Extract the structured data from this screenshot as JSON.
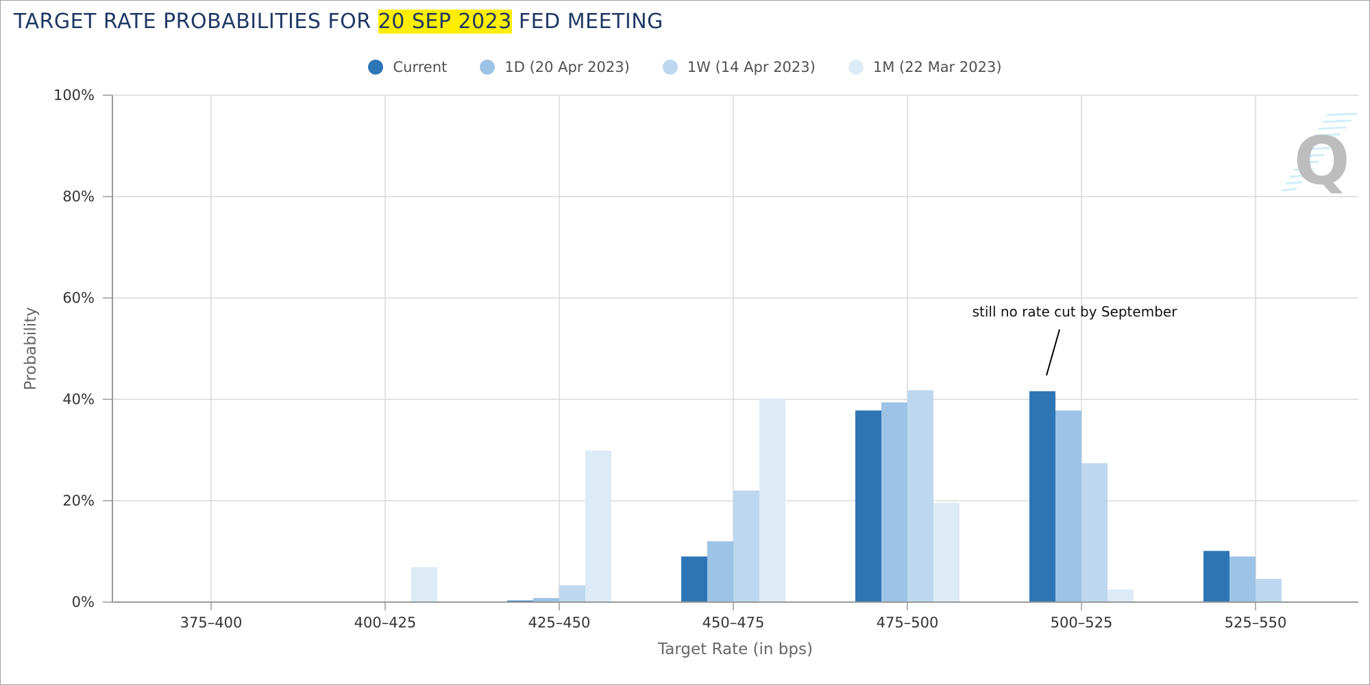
{
  "header": {
    "title_before": "TARGET RATE PROBABILITIES FOR ",
    "title_highlight": "20 SEP 2023",
    "title_after": " FED MEETING"
  },
  "watermark": {
    "text": "Q"
  },
  "chart_data": {
    "type": "bar",
    "xlabel": "Target Rate (in bps)",
    "ylabel": "Probability",
    "ylim": [
      0,
      100
    ],
    "yticks": [
      0,
      20,
      40,
      60,
      80,
      100
    ],
    "ytick_suffix": "%",
    "grid": true,
    "legend_position": "top-center",
    "categories": [
      "375-400",
      "400-425",
      "425-450",
      "450-475",
      "475-500",
      "500-525",
      "525-550"
    ],
    "series": [
      {
        "name": "Current",
        "color": "#2e75b6",
        "values": [
          0,
          0,
          0.3,
          9.0,
          37.8,
          41.6,
          10.1
        ]
      },
      {
        "name": "1D (20 Apr 2023)",
        "color": "#9dc3e6",
        "values": [
          0,
          0,
          0.8,
          12.0,
          39.4,
          37.8,
          9.0
        ]
      },
      {
        "name": "1W (14 Apr 2023)",
        "color": "#bdd7ee",
        "values": [
          0,
          0,
          3.3,
          22.0,
          41.8,
          27.4,
          4.6
        ]
      },
      {
        "name": "1M (22 Mar 2023)",
        "color": "#ddebf7",
        "values": [
          0,
          6.9,
          29.9,
          40.2,
          19.6,
          2.5,
          0
        ]
      }
    ],
    "annotations": [
      {
        "text": "still no rate cut by September",
        "category": "500-525"
      }
    ]
  }
}
